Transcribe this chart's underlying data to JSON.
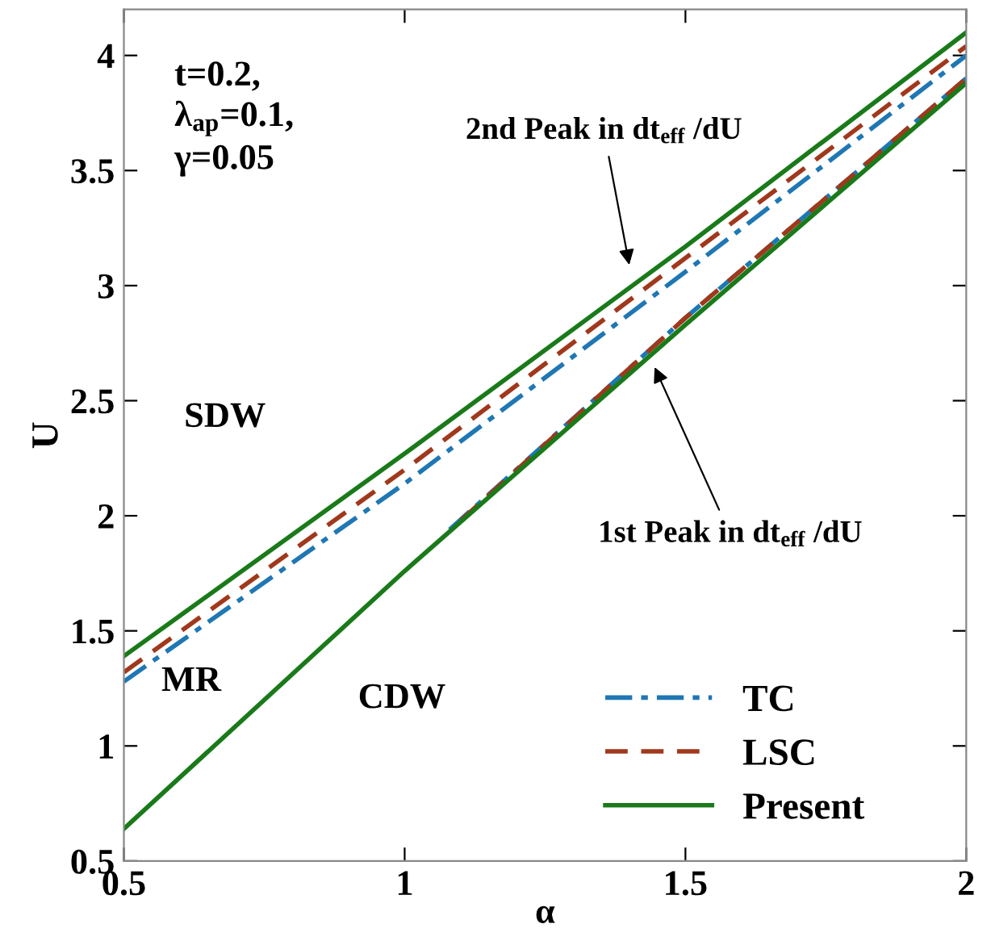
{
  "chart_data": {
    "type": "line",
    "xlabel": "α",
    "ylabel": "U",
    "xlim": [
      0.5,
      2
    ],
    "ylim": [
      0.5,
      4.2
    ],
    "xticks": [
      0.5,
      1,
      1.5,
      2
    ],
    "yticks": [
      0.5,
      1,
      1.5,
      2,
      2.5,
      3,
      3.5,
      4
    ],
    "grid": false,
    "legend": "bottom right",
    "marker": "none",
    "series": [
      {
        "name": "TC",
        "color": "#1f77b4",
        "line_style": "dashdot",
        "x": [
          0.5,
          1,
          1.5,
          2
        ],
        "values": [
          1.28,
          2.14,
          3.06,
          4.0
        ]
      },
      {
        "name": "LSC",
        "color": "#a0381c",
        "line_style": "dashed",
        "x": [
          0.5,
          1,
          1.5,
          2
        ],
        "values": [
          1.32,
          2.2,
          3.12,
          4.04
        ]
      },
      {
        "name": "Present",
        "color": "#1a7a1a",
        "line_style": "solid",
        "x": [
          0.5,
          1,
          1.5,
          2
        ],
        "values": [
          1.39,
          2.27,
          3.17,
          4.1
        ]
      },
      {
        "color": "#1f77b4",
        "line_style": "dashdot",
        "x": [
          1.08,
          1.5,
          2
        ],
        "values": [
          1.94,
          2.86,
          3.9
        ]
      },
      {
        "color": "#a0381c",
        "line_style": "dashed",
        "x": [
          1.1,
          1.5,
          2
        ],
        "values": [
          1.98,
          2.86,
          3.9
        ]
      },
      {
        "color": "#1a7a1a",
        "line_style": "solid",
        "x": [
          0.5,
          1,
          1.5,
          2
        ],
        "values": [
          0.64,
          1.76,
          2.83,
          3.88
        ]
      }
    ],
    "annotations": [
      "t=0.2,\nλ$_{ap}$=0.1,\nγ=0.05",
      "2nd Peak in dt$_{eff}$ /dU",
      "1st Peak in dt$_{eff}$ /dU",
      "SDW",
      "MR",
      "CDW"
    ]
  }
}
